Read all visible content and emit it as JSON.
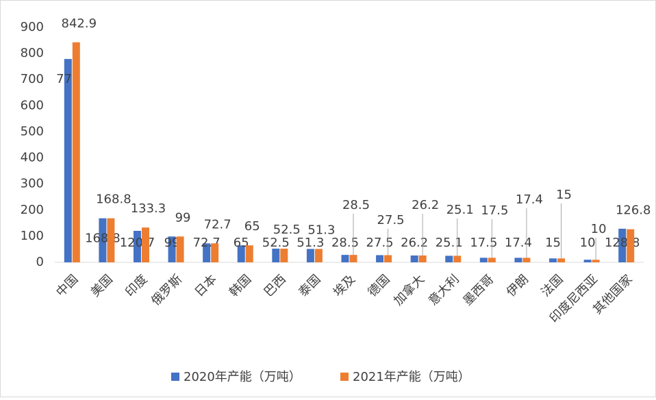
{
  "chart_data": {
    "type": "bar",
    "categories": [
      "中国",
      "美国",
      "印度",
      "俄罗斯",
      "日本",
      "韩国",
      "巴西",
      "泰国",
      "埃及",
      "德国",
      "加拿大",
      "意大利",
      "墨西哥",
      "伊朗",
      "法国",
      "印度尼西亚",
      "其他国家"
    ],
    "series": [
      {
        "name": "2020年产能（万吨）",
        "color": "#4472c4",
        "values": [
          779,
          168.8,
          120.7,
          99,
          72.7,
          65,
          52.5,
          51.3,
          28.5,
          27.5,
          26.2,
          25.1,
          17.5,
          17.4,
          15,
          10,
          128.8
        ]
      },
      {
        "name": "2021年产能（万吨）",
        "color": "#ed7d31",
        "values": [
          842.9,
          168.8,
          133.3,
          99,
          72.7,
          65,
          52.5,
          51.3,
          28.5,
          27.5,
          26.2,
          25.1,
          17.5,
          17.4,
          15,
          10,
          126.8
        ]
      }
    ],
    "ylim": [
      0,
      900
    ],
    "yticks": [
      0,
      100,
      200,
      300,
      400,
      500,
      600,
      700,
      800,
      900
    ],
    "legend": "bottom"
  }
}
